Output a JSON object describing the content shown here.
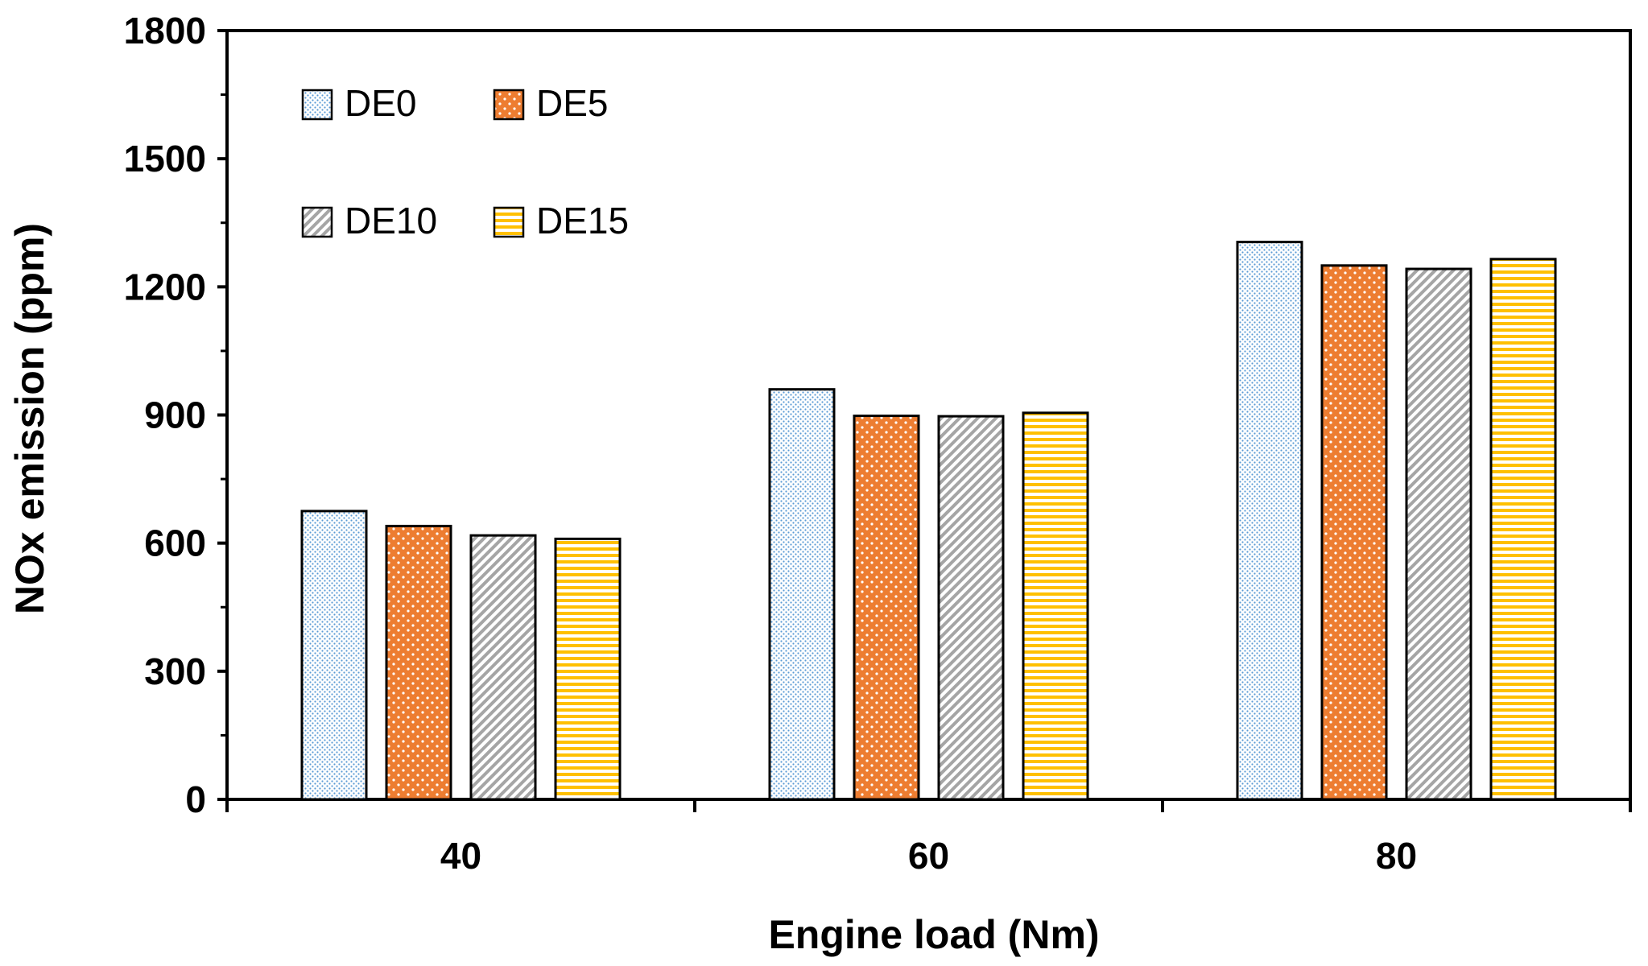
{
  "chart_data": {
    "type": "bar",
    "title": "",
    "xlabel": "Engine load (Nm)",
    "ylabel": "NOx emission (ppm)",
    "categories": [
      "40",
      "60",
      "80"
    ],
    "ylim": [
      0,
      1800
    ],
    "yticks": [
      0,
      300,
      600,
      900,
      1200,
      1500,
      1800
    ],
    "grid": false,
    "legend_position": "top-left",
    "series": [
      {
        "name": "DE0",
        "values": [
          675,
          960,
          1305
        ],
        "pattern": "dots-fine",
        "color": "#5b9bd5"
      },
      {
        "name": "DE5",
        "values": [
          640,
          898,
          1250
        ],
        "pattern": "dots-white",
        "color": "#ed7d31"
      },
      {
        "name": "DE10",
        "values": [
          618,
          897,
          1242
        ],
        "pattern": "diagonal",
        "color": "#a5a5a5"
      },
      {
        "name": "DE15",
        "values": [
          610,
          905,
          1265
        ],
        "pattern": "horizontal",
        "color": "#ffc000"
      }
    ]
  }
}
